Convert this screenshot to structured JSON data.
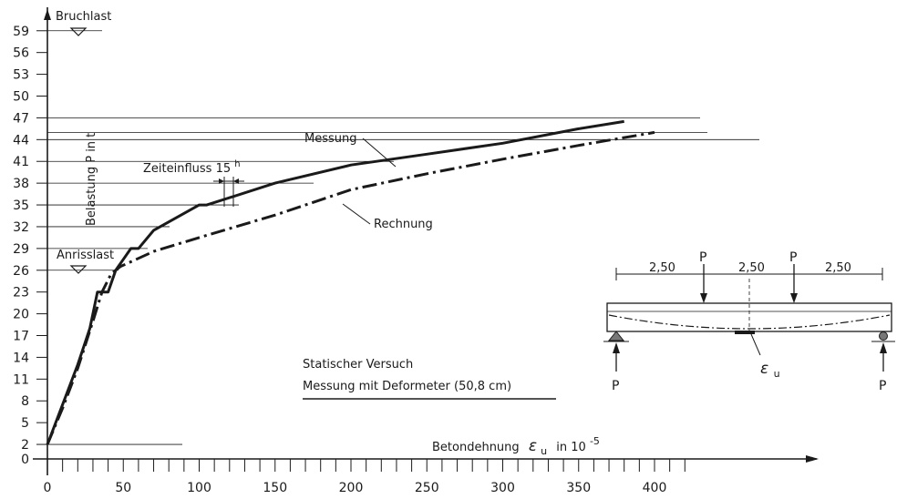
{
  "chart_data": {
    "type": "line",
    "xlabel": {
      "prefix": "Betondehnung",
      "symbol": "ε",
      "sub": "u",
      "unit_text": "in 10",
      "unit_exp": "-5"
    },
    "ylabel": "Belastung  P in t",
    "x_ticks": [
      0,
      50,
      100,
      150,
      200,
      250,
      300,
      350,
      400
    ],
    "y_ticks": [
      0,
      2,
      5,
      8,
      11,
      14,
      17,
      20,
      23,
      26,
      29,
      32,
      35,
      38,
      41,
      44,
      47,
      50,
      53,
      56,
      59
    ],
    "xlim": [
      0,
      420
    ],
    "ylim": [
      0,
      60
    ],
    "series": [
      {
        "name": "Messung",
        "style": "solid",
        "points": [
          [
            0,
            2
          ],
          [
            10,
            7.5
          ],
          [
            20,
            13
          ],
          [
            28,
            18
          ],
          [
            33,
            23
          ],
          [
            40,
            23
          ],
          [
            45,
            26
          ],
          [
            50,
            27.5
          ],
          [
            55,
            29
          ],
          [
            60,
            29
          ],
          [
            70,
            31.5
          ],
          [
            100,
            35
          ],
          [
            105,
            35
          ],
          [
            150,
            38
          ],
          [
            200,
            40.5
          ],
          [
            250,
            42
          ],
          [
            300,
            43.5
          ],
          [
            350,
            45.5
          ],
          [
            380,
            46.5
          ]
        ]
      },
      {
        "name": "Rechnung",
        "style": "dash-dot",
        "points": [
          [
            0,
            2
          ],
          [
            10,
            7
          ],
          [
            20,
            12.5
          ],
          [
            30,
            19
          ],
          [
            36,
            23
          ],
          [
            42,
            25.5
          ],
          [
            48,
            26.5
          ],
          [
            70,
            28.6
          ],
          [
            100,
            30.5
          ],
          [
            150,
            33.6
          ],
          [
            200,
            37.1
          ],
          [
            250,
            39.3
          ],
          [
            300,
            41.3
          ],
          [
            350,
            43.2
          ],
          [
            400,
            45
          ]
        ]
      }
    ],
    "reference_lines": [
      {
        "label": "Bruchlast",
        "y": 59
      },
      {
        "label": "Anrisslast",
        "y": 26
      }
    ],
    "annotations": {
      "messung": "Messung",
      "rechnung": "Rechnung",
      "zeit_prefix": "Zeiteinfluss  15",
      "zeit_sup": "h",
      "versuch_line1": "Statischer  Versuch",
      "versuch_line2": "Messung  mit  Deformeter (50,8 cm)"
    },
    "beam_inset": {
      "dim1": "2,50",
      "dim2": "2,50",
      "dim3": "2,50",
      "load_top": "P",
      "reaction": "P",
      "strain_symbol": "ε",
      "strain_sub": "u"
    }
  }
}
